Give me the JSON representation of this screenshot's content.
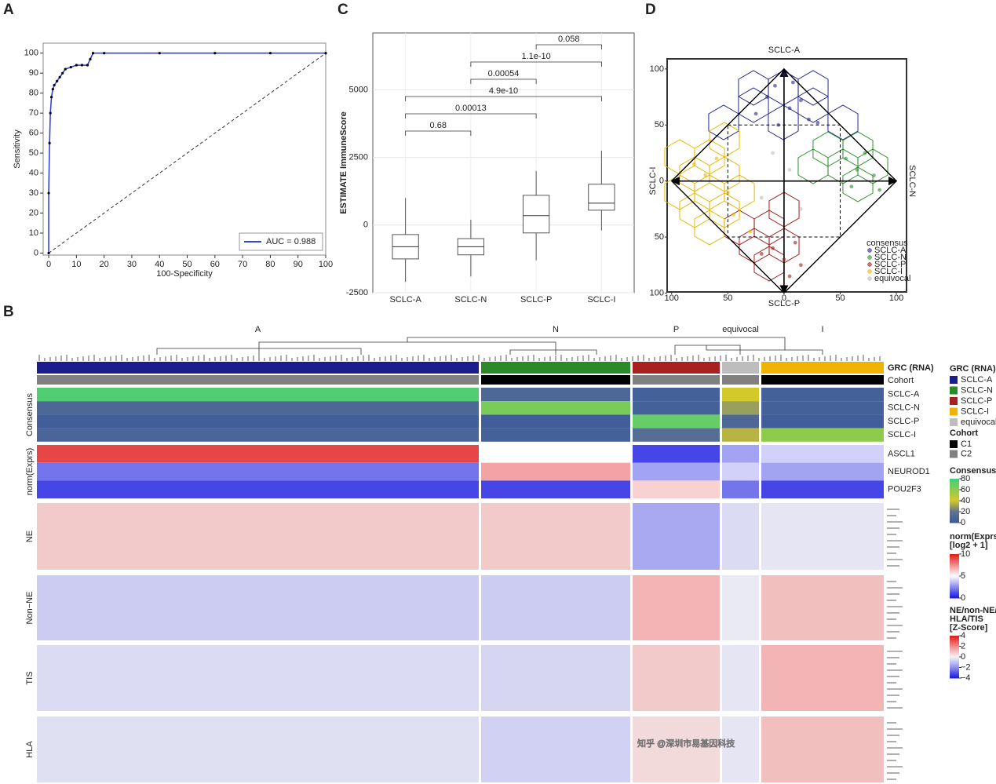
{
  "chart_data": [
    {
      "type": "line",
      "label": "A",
      "xlabel": "100-Specificity",
      "ylabel": "Sensitivity",
      "x": [
        0,
        0,
        0.3,
        0.6,
        1,
        1.5,
        2,
        3,
        4,
        5,
        6,
        8,
        10,
        12,
        14,
        15,
        16,
        20,
        40,
        60,
        80,
        100
      ],
      "series": [
        {
          "name": "AUC = 0.988",
          "color": "#3346d6",
          "values": [
            0,
            30,
            55,
            70,
            78,
            82,
            84,
            86,
            88,
            90,
            92,
            93,
            94,
            94,
            94,
            97,
            100,
            100,
            100,
            100,
            100,
            100
          ]
        }
      ],
      "xlim": [
        -2,
        100
      ],
      "ylim": [
        -1,
        105
      ],
      "xticks": [
        0,
        10,
        20,
        30,
        40,
        50,
        60,
        70,
        80,
        90,
        100
      ],
      "yticks": [
        0,
        10,
        20,
        30,
        40,
        50,
        60,
        70,
        80,
        90,
        100
      ],
      "legend": "bottom-right"
    },
    {
      "type": "box",
      "label": "C",
      "ylabel": "ESTIMATE ImmuneScore",
      "categories": [
        "SCLC-A",
        "SCLC-N",
        "SCLC-P",
        "SCLC-I"
      ],
      "boxes": [
        {
          "min": -2100,
          "q1": -1250,
          "median": -800,
          "q3": -350,
          "max": 1000
        },
        {
          "min": -1900,
          "q1": -1100,
          "median": -800,
          "q3": -500,
          "max": 200
        },
        {
          "min": -1300,
          "q1": -290,
          "median": 350,
          "q3": 1100,
          "max": 2000
        },
        {
          "min": -200,
          "q1": 550,
          "median": 810,
          "q3": 1510,
          "max": 2750
        }
      ],
      "annotations": [
        "0.68",
        "0.00013",
        "4.9e-10",
        "0.00054",
        "1.1e-10",
        "0.058"
      ],
      "ylim": [
        -2500,
        7100
      ],
      "yticks": [
        -2500,
        0,
        2500,
        5000
      ],
      "grid": true
    },
    {
      "type": "scatter",
      "label": "D",
      "vertex_labels": {
        "top": "SCLC-A",
        "bottom": "SCLC-P",
        "left": "SCLC-I",
        "right": "SCLC-N"
      },
      "xlim": [
        -104,
        109
      ],
      "ylim": [
        -99,
        109
      ],
      "xticks": [
        {
          "value": -100,
          "label": "100"
        },
        {
          "value": -50,
          "label": "50"
        },
        0,
        50,
        100
      ],
      "yticks": [
        100,
        50,
        0,
        {
          "value": -50,
          "label": "50"
        },
        {
          "value": -100,
          "label": "100"
        }
      ],
      "legend_title": "consensus",
      "legend": "bottom-right",
      "series": [
        {
          "name": "SCLC-A",
          "color": "#26288a",
          "x": [
            0,
            -8,
            8,
            -15,
            15,
            -25,
            22,
            5,
            -5,
            30
          ],
          "y": [
            95,
            85,
            88,
            75,
            72,
            60,
            55,
            65,
            50,
            52
          ]
        },
        {
          "name": "SCLC-N",
          "color": "#2f8f2f",
          "x": [
            55,
            65,
            72,
            80,
            60,
            85
          ],
          "y": [
            20,
            10,
            25,
            5,
            -5,
            -8
          ]
        },
        {
          "name": "SCLC-P",
          "color": "#a01c1c",
          "x": [
            -10,
            0,
            10,
            -20,
            5,
            15
          ],
          "y": [
            -60,
            -70,
            -55,
            -65,
            -85,
            -75
          ]
        },
        {
          "name": "SCLC-I",
          "color": "#e8b800",
          "x": [
            -60,
            -70,
            -50,
            -45,
            -30,
            -80
          ],
          "y": [
            20,
            5,
            -10,
            -30,
            -45,
            15
          ]
        },
        {
          "name": "equivocal",
          "color": "#bdbdbd",
          "x": [
            -10,
            5,
            -20,
            15
          ],
          "y": [
            25,
            10,
            -15,
            -25
          ]
        }
      ]
    },
    {
      "type": "heatmap",
      "label": "B",
      "columns": [
        "A",
        "N",
        "P",
        "equivocal",
        "I"
      ],
      "grc_legend": {
        "title": "GRC (RNA)",
        "items": [
          {
            "name": "SCLC-A",
            "color": "#1c1c8c"
          },
          {
            "name": "SCLC-N",
            "color": "#2a8a2a"
          },
          {
            "name": "SCLC-P",
            "color": "#a82020"
          },
          {
            "name": "SCLC-I",
            "color": "#f0b400"
          },
          {
            "name": "equivocal",
            "color": "#bdbdbd"
          }
        ]
      },
      "cohort_legend": {
        "title": "Cohort",
        "items": [
          {
            "name": "C1",
            "color": "#000000"
          },
          {
            "name": "C2",
            "color": "#808080"
          }
        ]
      },
      "cohort": [
        "C2",
        "C1",
        "C2",
        "C2",
        "C1"
      ],
      "consensus": {
        "label": "Consensus",
        "title": "Consensus",
        "ticks": [
          80,
          60,
          40,
          20,
          0
        ],
        "colors": [
          "#3ccf82",
          "#8fcb4a",
          "#d4c92a",
          "#5e7590",
          "#3c5a9c"
        ],
        "rows": [
          {
            "name": "SCLC-A",
            "values": [
              75,
              10,
              5,
              40,
              5
            ]
          },
          {
            "name": "SCLC-N",
            "values": [
              10,
              65,
              5,
              30,
              5
            ]
          },
          {
            "name": "SCLC-P",
            "values": [
              3,
              3,
              70,
              10,
              3
            ]
          },
          {
            "name": "SCLC-I",
            "values": [
              8,
              5,
              15,
              35,
              60
            ]
          }
        ]
      },
      "expression": {
        "label": "norm(Exprs)",
        "title_lines": [
          "norm(Exprs)",
          "[log2 + 1]"
        ],
        "ticks": [
          10,
          5,
          0
        ],
        "colors": [
          "#e01818",
          "#ffffff",
          "#1818e0"
        ],
        "rows": [
          {
            "name": "ASCL1",
            "values": [
              9,
              5,
              1,
              3,
              4
            ]
          },
          {
            "name": "NEUROD1",
            "values": [
              2,
              7,
              3,
              4,
              3
            ]
          },
          {
            "name": "POU2F3",
            "values": [
              1,
              1,
              6,
              2,
              1
            ]
          }
        ]
      },
      "zscore": {
        "title_lines": [
          "NE/non-NE/",
          "HLA/TIS",
          "[Z-Score]"
        ],
        "ticks": [
          4,
          2,
          0,
          {
            "value": -2,
            "label": "−2"
          },
          {
            "value": -4,
            "label": "−4"
          }
        ],
        "colors": [
          "#e01818",
          "#f08a8a",
          "#f4f4f4",
          "#9090f0",
          "#1818e0"
        ],
        "blocks": [
          {
            "name": "NE",
            "values": [
              0.8,
              0.8,
              -1.5,
              -0.5,
              -0.3
            ]
          },
          {
            "name": "Non−NE",
            "values": [
              -0.8,
              -0.8,
              1.2,
              -0.2,
              1.0
            ]
          },
          {
            "name": "TIS",
            "values": [
              -0.5,
              -0.6,
              0.8,
              -0.3,
              1.2
            ]
          },
          {
            "name": "HLA",
            "values": [
              -0.4,
              -0.7,
              0.5,
              -0.3,
              1.0
            ]
          }
        ]
      },
      "watermark": "知乎 @深圳市易基因科技"
    }
  ]
}
